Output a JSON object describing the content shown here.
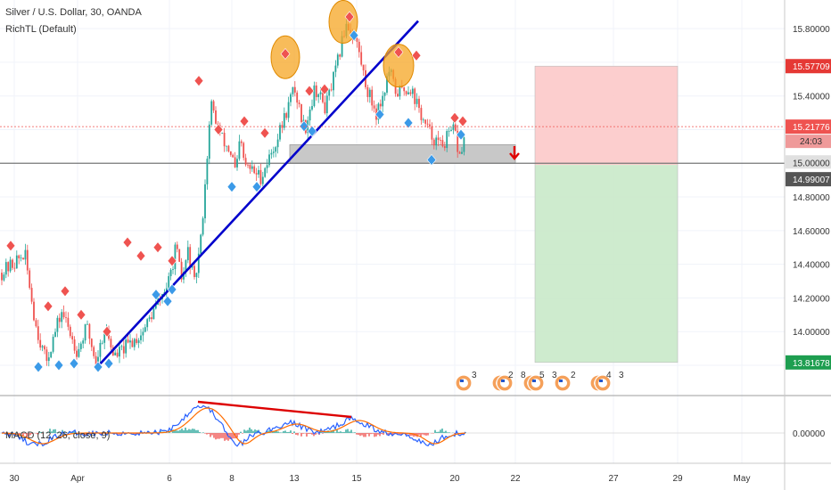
{
  "header": {
    "title": "Silver / U.S. Dollar, 30, OANDA",
    "indicator": "RichTL (Default)",
    "macd_label": "MACD (12, 26, close, 9)"
  },
  "price_labels": {
    "stop": "15.57709",
    "last": "15.21776",
    "countdown": "24:03",
    "level": "15.00000",
    "entry": "14.99007",
    "target": "13.81678",
    "macd_zero": "0.00000"
  },
  "events": [
    {
      "n": "3",
      "x": "Apr 20"
    },
    {
      "n": "2",
      "x": "Apr 21"
    },
    {
      "n": "8",
      "x": "Apr 21"
    },
    {
      "n": "5",
      "x": "Apr 22"
    },
    {
      "n": "3",
      "x": "Apr 22"
    },
    {
      "n": "2",
      "x": "Apr 23"
    },
    {
      "n": "4",
      "x": "Apr 24"
    },
    {
      "n": "3",
      "x": "Apr 24"
    }
  ],
  "colors": {
    "bull": "#26a69a",
    "bear": "#ef5350",
    "trendline": "#0000cc",
    "stop_zone": "#fcc9c9",
    "target_zone": "#c9e9c9",
    "zone": "#c8c8c8",
    "divergence": "#dd0000",
    "highlight": "#f5a623"
  },
  "chart_data": {
    "type": "candlestick",
    "symbol": "Silver / U.S. Dollar",
    "timeframe": "30",
    "exchange": "OANDA",
    "x_tick_labels": [
      "30",
      "Apr",
      "6",
      "8",
      "13",
      "15",
      "20",
      "22",
      "27",
      "29",
      "May"
    ],
    "y_tick_labels": [
      "13.80000",
      "14.00000",
      "14.20000",
      "14.40000",
      "14.60000",
      "14.80000",
      "15.00000",
      "15.20000",
      "15.40000",
      "15.60000",
      "15.80000"
    ],
    "ylim": [
      13.62,
      15.97
    ],
    "price_path": [
      [
        "Mar 30",
        14.35
      ],
      [
        "Mar 30",
        14.46
      ],
      [
        "Mar 30",
        14.05
      ],
      [
        "Mar 31",
        13.82
      ],
      [
        "Mar 31",
        14.12
      ],
      [
        "Apr 1",
        13.88
      ],
      [
        "Apr 1",
        14.03
      ],
      [
        "Apr 2",
        13.82
      ],
      [
        "Apr 2",
        14.03
      ],
      [
        "Apr 3",
        13.85
      ],
      [
        "Apr 3",
        13.99
      ],
      [
        "Apr 6",
        14.3
      ],
      [
        "Apr 6",
        14.5
      ],
      [
        "Apr 6",
        14.3
      ],
      [
        "Apr 6",
        14.48
      ],
      [
        "Apr 6",
        14.28
      ],
      [
        "Apr 7",
        14.53
      ],
      [
        "Apr 7",
        15.35
      ],
      [
        "Apr 7",
        15.15
      ],
      [
        "Apr 8",
        15.05
      ],
      [
        "Apr 8",
        14.93
      ],
      [
        "Apr 8",
        15.15
      ],
      [
        "Apr 9",
        14.99
      ],
      [
        "Apr 9",
        14.92
      ],
      [
        "Apr 9",
        15.15
      ],
      [
        "Apr 13",
        15.45
      ],
      [
        "Apr 13",
        15.2
      ],
      [
        "Apr 13",
        15.45
      ],
      [
        "Apr 14",
        15.33
      ],
      [
        "Apr 14",
        15.55
      ],
      [
        "Apr 14",
        15.84
      ],
      [
        "Apr 15",
        15.72
      ],
      [
        "Apr 15",
        15.45
      ],
      [
        "Apr 16",
        15.3
      ],
      [
        "Apr 16",
        15.4
      ],
      [
        "Apr 16",
        15.55
      ],
      [
        "Apr 17",
        15.42
      ],
      [
        "Apr 17",
        15.45
      ],
      [
        "Apr 17",
        15.22
      ],
      [
        "Apr 17",
        15.1
      ],
      [
        "Apr 20",
        15.2
      ],
      [
        "Apr 20",
        15.03
      ],
      [
        "Apr 20",
        15.13
      ],
      [
        "Apr 20",
        15.22
      ]
    ],
    "swing_highs": [
      [
        "Apr 7",
        15.5
      ],
      [
        "Apr 13",
        15.66
      ],
      [
        "Apr 14",
        15.88
      ],
      [
        "Apr 17",
        15.67
      ],
      [
        "Apr 17",
        15.64
      ]
    ],
    "swing_lows": [
      [
        "Mar 31",
        13.81
      ],
      [
        "Apr 2",
        13.81
      ],
      [
        "Apr 8",
        14.85
      ],
      [
        "Apr 9",
        14.86
      ],
      [
        "Apr 15",
        15.34
      ],
      [
        "Apr 19",
        15.02
      ]
    ],
    "trendline": {
      "from": [
        "Apr 2",
        13.81
      ],
      "to": [
        "Apr 15",
        15.84
      ]
    },
    "zone": {
      "low": 15.0,
      "high": 15.11,
      "from": "Apr 13",
      "to": "Apr 22"
    },
    "horizontal_line": 15.0,
    "position": {
      "type": "short",
      "entry": 14.99007,
      "stop": 15.57709,
      "target": 13.81678,
      "from": "Apr 23",
      "to": "Apr 29"
    },
    "macd": {
      "fast": 12,
      "slow": 26,
      "source": "close",
      "signal": 9,
      "zero": 0.0
    }
  }
}
